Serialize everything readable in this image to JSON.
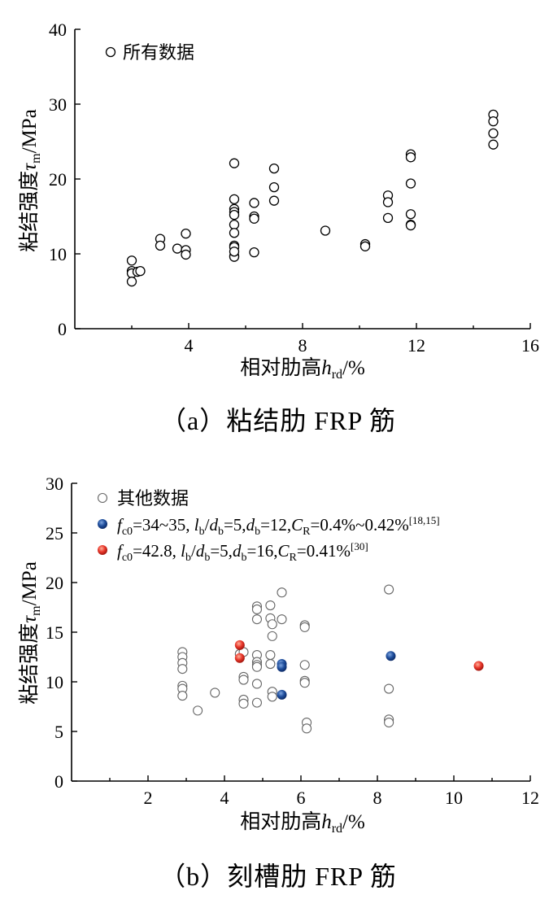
{
  "chart_data": [
    {
      "type": "scatter",
      "caption": "（a）粘结肋 FRP 筋",
      "ylabel": "粘结强度τm/MPa",
      "xlabel": "相对肋高hrd/%",
      "xlim": [
        0,
        16
      ],
      "ylim": [
        0,
        40
      ],
      "xticks": [
        "4",
        "8",
        "12",
        "16"
      ],
      "yticks": [
        "0",
        "10",
        "20",
        "30",
        "40"
      ],
      "grid": false,
      "legend_position": "top-left",
      "series": [
        {
          "name": "所有数据",
          "marker": "open-circle",
          "color": "#000000",
          "x": [
            2.0,
            2.0,
            2.0,
            2.0,
            2.2,
            2.3,
            3.0,
            3.0,
            3.6,
            3.9,
            3.9,
            3.9,
            5.6,
            5.6,
            5.6,
            5.6,
            5.6,
            5.6,
            5.6,
            5.6,
            5.6,
            5.6,
            5.6,
            5.6,
            6.3,
            6.3,
            6.3,
            6.3,
            7.0,
            7.0,
            7.0,
            8.8,
            10.2,
            10.2,
            11.0,
            11.0,
            11.0,
            11.8,
            11.8,
            11.8,
            11.8,
            11.8,
            11.8,
            14.7,
            14.7,
            14.7,
            14.7
          ],
          "y": [
            9.1,
            7.7,
            7.4,
            6.3,
            7.6,
            7.7,
            12.0,
            11.1,
            10.7,
            12.7,
            10.5,
            9.9,
            22.1,
            17.3,
            16.0,
            15.6,
            15.2,
            13.9,
            12.8,
            11.1,
            10.9,
            9.7,
            9.6,
            10.3,
            16.8,
            15.0,
            14.7,
            10.2,
            21.4,
            18.9,
            17.1,
            13.1,
            11.3,
            11.0,
            17.8,
            16.9,
            14.8,
            23.3,
            22.9,
            19.4,
            15.3,
            13.9,
            13.8,
            28.6,
            27.7,
            26.1,
            24.6
          ]
        }
      ]
    },
    {
      "type": "scatter",
      "caption": "（b）刻槽肋 FRP 筋",
      "ylabel": "粘结强度τm/MPa",
      "xlabel": "相对肋高hrd/%",
      "xlim": [
        0,
        12
      ],
      "ylim": [
        0,
        30
      ],
      "xticks": [
        "2",
        "4",
        "6",
        "8",
        "10",
        "12"
      ],
      "yticks": [
        "0",
        "5",
        "10",
        "15",
        "20",
        "25",
        "30"
      ],
      "grid": false,
      "legend_position": "top-left",
      "series": [
        {
          "name": "其他数据",
          "marker": "open-circle",
          "color": "#666666",
          "x": [
            2.9,
            2.9,
            2.9,
            2.9,
            2.9,
            2.9,
            2.9,
            3.3,
            3.75,
            4.4,
            4.5,
            4.5,
            4.5,
            4.5,
            4.5,
            4.85,
            4.85,
            4.85,
            4.85,
            4.85,
            4.85,
            4.85,
            4.85,
            4.85,
            5.2,
            5.2,
            5.2,
            5.2,
            5.25,
            5.25,
            5.25,
            5.25,
            5.5,
            5.5,
            6.1,
            6.1,
            6.1,
            6.1,
            6.1,
            6.15,
            6.15,
            8.3,
            8.3,
            8.3,
            8.3
          ],
          "y": [
            13.0,
            12.5,
            11.9,
            11.3,
            9.6,
            9.3,
            8.6,
            7.1,
            8.9,
            12.8,
            13.0,
            10.5,
            10.2,
            8.2,
            7.8,
            17.6,
            17.3,
            16.3,
            12.7,
            12.0,
            11.7,
            11.5,
            9.8,
            7.9,
            17.7,
            16.4,
            12.7,
            11.8,
            15.8,
            14.6,
            9.0,
            8.5,
            19.0,
            16.3,
            15.7,
            15.5,
            11.7,
            10.1,
            9.9,
            5.9,
            5.3,
            19.3,
            9.3,
            6.2,
            5.9
          ]
        },
        {
          "name": "fc0=34~35, lb/db=5,db=12,CR=0.4%~0.42%[18,15]",
          "marker": "filled-circle",
          "color": "#1f4e9c",
          "x": [
            5.5,
            5.5,
            5.5,
            8.35
          ],
          "y": [
            11.8,
            11.5,
            8.7,
            12.6
          ]
        },
        {
          "name": "fc0=42.8, lb/db=5,db=16,CR=0.41%[30]",
          "marker": "filled-circle",
          "color": "#e8362a",
          "x": [
            4.4,
            4.4,
            10.65
          ],
          "y": [
            13.7,
            12.4,
            11.6
          ]
        }
      ]
    }
  ]
}
